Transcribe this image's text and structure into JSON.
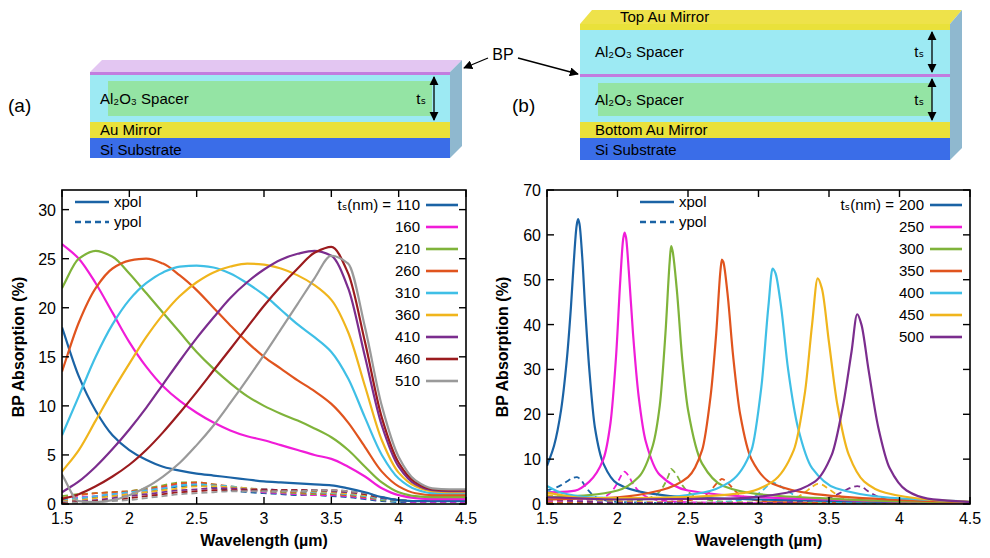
{
  "chart_data": [
    {
      "type": "line",
      "panel_label": "(a)",
      "xlabel": "Wavelength (µm)",
      "ylabel": "BP Absorption (%)",
      "xlim": [
        1.5,
        4.5
      ],
      "ylim": [
        0,
        32
      ],
      "xticks": [
        1.5,
        2,
        2.5,
        3,
        3.5,
        4,
        4.5
      ],
      "yticks": [
        0,
        5,
        10,
        15,
        20,
        25,
        30
      ],
      "legend": "upper right",
      "legend_title": "tₛ(nm) =",
      "polarization_legend": [
        {
          "name": "xpol",
          "line_style": "solid"
        },
        {
          "name": "ypol",
          "line_style": "dashed"
        }
      ],
      "schematic": {
        "bp_label": "BP",
        "spacer": "Al₂O₃ Spacer",
        "thickness": "tₛ",
        "mirror": "Au Mirror",
        "substrate": "Si Substrate"
      },
      "x": [
        1.5,
        1.625,
        1.75,
        1.875,
        2,
        2.125,
        2.25,
        2.375,
        2.5,
        2.625,
        2.75,
        2.875,
        3,
        3.125,
        3.25,
        3.375,
        3.5,
        3.625,
        3.75,
        3.875,
        4,
        4.125,
        4.25,
        4.375,
        4.5
      ],
      "series": [
        {
          "name": "110",
          "color": "#1b63a5",
          "values": [
            18,
            13,
            9.5,
            7,
            5.5,
            4.5,
            3.8,
            3.4,
            3.1,
            2.9,
            2.7,
            2.5,
            2.3,
            2.2,
            2.1,
            2.0,
            1.9,
            1.6,
            1.2,
            0.7,
            0.4,
            0.3,
            0.3,
            0.3,
            0.3
          ],
          "ypol_values": [
            0.5,
            0.6,
            0.7,
            0.8,
            1.0,
            1.2,
            1.5,
            1.8,
            1.9,
            1.7,
            1.4,
            1.2,
            1.1,
            1.0,
            0.9,
            0.9,
            0.8,
            0.7,
            0.5,
            0.3,
            0.2,
            0.2,
            0.2,
            0.2,
            0.2
          ]
        },
        {
          "name": "160",
          "color": "#f01cd8",
          "values": [
            26.5,
            25,
            22.5,
            19.5,
            16.5,
            14,
            12,
            10.5,
            9.3,
            8.3,
            7.5,
            6.9,
            6.5,
            6,
            5.5,
            5,
            4.6,
            3.8,
            2.8,
            1.6,
            0.9,
            0.6,
            0.5,
            0.5,
            0.5
          ],
          "ypol_values": [
            0.6,
            0.7,
            0.8,
            1.0,
            1.2,
            1.4,
            1.7,
            2.0,
            2.1,
            1.9,
            1.6,
            1.4,
            1.2,
            1.1,
            1.0,
            0.9,
            0.9,
            0.8,
            0.6,
            0.4,
            0.3,
            0.2,
            0.2,
            0.2,
            0.2
          ]
        },
        {
          "name": "210",
          "color": "#7fb33a",
          "values": [
            22,
            25,
            25.8,
            25.2,
            23.5,
            21.5,
            19.5,
            17.5,
            15.5,
            13.8,
            12.3,
            11,
            10,
            9.2,
            8.5,
            7.7,
            6.8,
            5.5,
            3.8,
            2.2,
            1.2,
            0.8,
            0.7,
            0.7,
            0.7
          ],
          "ypol_values": [
            0.8,
            1.0,
            1.1,
            1.2,
            1.3,
            1.6,
            1.9,
            2.2,
            2.2,
            2.0,
            1.7,
            1.5,
            1.3,
            1.2,
            1.1,
            1.0,
            1.0,
            0.9,
            0.7,
            0.4,
            0.3,
            0.3,
            0.3,
            0.3,
            0.3
          ]
        },
        {
          "name": "260",
          "color": "#e0541e",
          "values": [
            13.5,
            18.5,
            22,
            24,
            24.8,
            25,
            24.5,
            23.3,
            21.8,
            20,
            18.2,
            16.5,
            15,
            13.8,
            12.6,
            11.5,
            10.2,
            8.3,
            5.8,
            3.3,
            1.8,
            1.1,
            0.9,
            0.9,
            0.9
          ],
          "ypol_values": [
            0.6,
            0.9,
            1.1,
            1.2,
            1.3,
            1.5,
            1.8,
            2.1,
            2.2,
            2.0,
            1.8,
            1.6,
            1.4,
            1.3,
            1.2,
            1.1,
            1.0,
            0.9,
            0.7,
            0.5,
            0.3,
            0.3,
            0.3,
            0.3,
            0.3
          ]
        },
        {
          "name": "310",
          "color": "#3fbfe6",
          "values": [
            7,
            11,
            15,
            18.3,
            20.8,
            22.5,
            23.6,
            24.2,
            24.3,
            24.1,
            23.5,
            22.5,
            21.3,
            19.8,
            18.3,
            17,
            15.5,
            12.8,
            8.8,
            5,
            2.6,
            1.5,
            1.1,
            1.1,
            1.1
          ],
          "ypol_values": [
            0.4,
            0.6,
            0.8,
            1.0,
            1.2,
            1.4,
            1.6,
            1.9,
            2.0,
            1.9,
            1.8,
            1.6,
            1.5,
            1.4,
            1.3,
            1.2,
            1.1,
            1.0,
            0.8,
            0.5,
            0.3,
            0.3,
            0.3,
            0.3,
            0.3
          ]
        },
        {
          "name": "360",
          "color": "#f0b51c",
          "values": [
            3.3,
            5.5,
            8.5,
            11.5,
            14.3,
            17,
            19.3,
            21.2,
            22.6,
            23.6,
            24.2,
            24.5,
            24.4,
            24,
            23.3,
            22.3,
            20.8,
            17.5,
            12,
            6.5,
            3.2,
            1.8,
            1.3,
            1.2,
            1.2
          ],
          "ypol_values": [
            0.3,
            0.4,
            0.6,
            0.8,
            1.0,
            1.2,
            1.4,
            1.6,
            1.8,
            1.8,
            1.7,
            1.6,
            1.5,
            1.4,
            1.4,
            1.3,
            1.2,
            1.1,
            0.9,
            0.6,
            0.4,
            0.3,
            0.3,
            0.3,
            0.3
          ]
        },
        {
          "name": "410",
          "color": "#7b2d8e",
          "values": [
            1.2,
            2.3,
            3.8,
            5.6,
            7.6,
            9.8,
            12.2,
            14.6,
            16.9,
            19,
            21,
            22.6,
            23.9,
            24.9,
            25.5,
            25.8,
            25.3,
            22,
            15,
            8,
            3.8,
            2,
            1.4,
            1.3,
            1.3
          ],
          "ypol_values": [
            0.2,
            0.3,
            0.4,
            0.6,
            0.8,
            1.0,
            1.2,
            1.4,
            1.5,
            1.6,
            1.6,
            1.5,
            1.5,
            1.4,
            1.4,
            1.4,
            1.3,
            1.2,
            1.0,
            0.6,
            0.4,
            0.3,
            0.3,
            0.3,
            0.3
          ]
        },
        {
          "name": "460",
          "color": "#9b1b1e",
          "values": [
            0.5,
            1,
            1.8,
            2.8,
            4,
            5.5,
            7.3,
            9.3,
            11.4,
            13.6,
            15.8,
            18,
            20.2,
            22.2,
            24,
            25.6,
            26.2,
            23.5,
            16.5,
            8.8,
            4.2,
            2.2,
            1.5,
            1.4,
            1.4
          ],
          "ypol_values": [
            0.2,
            0.2,
            0.3,
            0.4,
            0.6,
            0.8,
            1.0,
            1.2,
            1.3,
            1.4,
            1.4,
            1.4,
            1.4,
            1.4,
            1.4,
            1.4,
            1.4,
            1.3,
            1.0,
            0.7,
            0.4,
            0.3,
            0.3,
            0.3,
            0.3
          ]
        },
        {
          "name": "510",
          "color": "#9a9a9a",
          "values": [
            3,
            0.3,
            0.2,
            0.4,
            0.9,
            1.7,
            2.8,
            4.2,
            6,
            8,
            10.3,
            12.7,
            15.2,
            17.8,
            20.4,
            23,
            25.3,
            24.5,
            18,
            10,
            4.8,
            2.4,
            1.6,
            1.5,
            1.5
          ],
          "ypol_values": [
            0.3,
            0.1,
            0.2,
            0.3,
            0.4,
            0.6,
            0.8,
            1.0,
            1.1,
            1.2,
            1.3,
            1.3,
            1.3,
            1.3,
            1.3,
            1.4,
            1.4,
            1.3,
            1.1,
            0.7,
            0.4,
            0.3,
            0.3,
            0.3,
            0.3
          ]
        }
      ]
    },
    {
      "type": "line",
      "panel_label": "(b)",
      "xlabel": "Wavelength (µm)",
      "ylabel": "BP Absorption (%)",
      "xlim": [
        1.5,
        4.5
      ],
      "ylim": [
        0,
        70
      ],
      "xticks": [
        1.5,
        2,
        2.5,
        3,
        3.5,
        4,
        4.5
      ],
      "yticks": [
        0,
        10,
        20,
        30,
        40,
        50,
        60,
        70
      ],
      "legend": "upper right",
      "legend_title": "tₛ(nm) =",
      "polarization_legend": [
        {
          "name": "xpol",
          "line_style": "solid"
        },
        {
          "name": "ypol",
          "line_style": "dashed"
        }
      ],
      "schematic": {
        "top_mirror": "Top Au Mirror",
        "spacer": "Al₂O₃ Spacer",
        "thickness": "tₛ",
        "mirror": "Bottom Au Mirror",
        "substrate": "Si Substrate"
      },
      "series": [
        {
          "name": "200",
          "color": "#1b63a5",
          "x": [
            1.5,
            1.55,
            1.6,
            1.64,
            1.67,
            1.69,
            1.71,
            1.72,
            1.73,
            1.75,
            1.77,
            1.8,
            1.84,
            1.9,
            2.0,
            2.2,
            2.5,
            3.0,
            3.5,
            4.0,
            4.5
          ],
          "values": [
            8.5,
            13,
            21,
            32,
            44,
            54,
            62,
            63.5,
            62.5,
            55,
            44,
            30,
            17,
            9,
            4.5,
            2.5,
            1.5,
            1,
            0.7,
            0.4,
            0.2
          ],
          "ypol_values": [
            3,
            3.5,
            4.2,
            5,
            5.6,
            5.9,
            6,
            5.9,
            5.7,
            5,
            4,
            2.8,
            1.6,
            0.9,
            0.5,
            0.3,
            0.2,
            0.1,
            0.1,
            0.1,
            0.1
          ]
        },
        {
          "name": "250",
          "color": "#f01cd8",
          "x": [
            1.5,
            1.7,
            1.8,
            1.9,
            1.95,
            1.99,
            2.02,
            2.04,
            2.05,
            2.06,
            2.08,
            2.11,
            2.15,
            2.2,
            2.3,
            2.5,
            3.0,
            3.5,
            4.0,
            4.5
          ],
          "values": [
            2.5,
            3,
            5,
            10,
            18,
            33,
            50,
            59,
            60.5,
            59.5,
            52,
            38,
            24,
            14,
            6.5,
            3,
            1.5,
            1,
            0.5,
            0.2
          ],
          "ypol_values": [
            0.5,
            0.5,
            0.8,
            1.5,
            2.5,
            4.2,
            6,
            7,
            7.2,
            7,
            6.2,
            4.5,
            2.9,
            1.7,
            0.8,
            0.4,
            0.2,
            0.1,
            0.1,
            0.1
          ]
        },
        {
          "name": "300",
          "color": "#7fb33a",
          "x": [
            1.5,
            1.8,
            2.0,
            2.15,
            2.25,
            2.3,
            2.34,
            2.37,
            2.38,
            2.39,
            2.42,
            2.46,
            2.5,
            2.6,
            2.75,
            3.0,
            3.5,
            4.0,
            4.5
          ],
          "values": [
            1.5,
            2,
            3,
            6,
            13,
            22,
            38,
            54,
            57.5,
            56.5,
            48,
            32,
            21,
            9,
            4,
            2.2,
            1.2,
            0.6,
            0.3
          ],
          "ypol_values": [
            0.3,
            0.3,
            0.4,
            0.8,
            1.6,
            2.8,
            4.8,
            7,
            7.8,
            7.6,
            6.4,
            4.2,
            2.7,
            1.2,
            0.5,
            0.3,
            0.2,
            0.1,
            0.1
          ]
        },
        {
          "name": "350",
          "color": "#e0541e",
          "x": [
            1.5,
            2.0,
            2.3,
            2.5,
            2.6,
            2.66,
            2.7,
            2.73,
            2.74,
            2.75,
            2.78,
            2.82,
            2.87,
            2.95,
            3.1,
            3.4,
            4.0,
            4.5
          ],
          "values": [
            1,
            1.5,
            3,
            6,
            12,
            24,
            38,
            52,
            54.5,
            54,
            47,
            33,
            20,
            10,
            4.5,
            2.2,
            0.9,
            0.4
          ],
          "ypol_values": [
            0.2,
            0.2,
            0.4,
            0.8,
            1.5,
            3,
            4.5,
            5.4,
            5.6,
            5.5,
            4.8,
            3.4,
            2,
            1,
            0.5,
            0.3,
            0.1,
            0.1
          ]
        },
        {
          "name": "400",
          "color": "#3fbfe6",
          "x": [
            1.5,
            1.6,
            1.8,
            2.2,
            2.6,
            2.8,
            2.95,
            3.02,
            3.07,
            3.1,
            3.12,
            3.16,
            3.21,
            3.28,
            3.38,
            3.55,
            3.9,
            4.5
          ],
          "values": [
            4,
            2.5,
            1.5,
            1.2,
            2.5,
            5,
            12,
            26,
            44,
            52.5,
            51.5,
            44,
            30,
            17,
            8,
            3.5,
            1.5,
            0.5
          ],
          "ypol_values": [
            3,
            2,
            1,
            0.3,
            0.3,
            0.6,
            1.4,
            2.8,
            4.2,
            4.8,
            4.6,
            3.9,
            2.8,
            1.6,
            0.8,
            0.4,
            0.2,
            0.1
          ]
        },
        {
          "name": "450",
          "color": "#f0b51c",
          "x": [
            1.5,
            1.8,
            2.4,
            2.9,
            3.1,
            3.25,
            3.33,
            3.38,
            3.42,
            3.45,
            3.5,
            3.56,
            3.64,
            3.75,
            3.9,
            4.2,
            4.5
          ],
          "values": [
            2.5,
            1.3,
            1.5,
            2.5,
            5,
            12,
            25,
            40,
            50.3,
            48,
            36,
            22,
            11,
            5,
            2.5,
            1,
            0.5
          ],
          "ypol_values": [
            2,
            1,
            0.3,
            0.3,
            0.5,
            1.2,
            2.6,
            3.8,
            4.5,
            4.3,
            3.3,
            2,
            1,
            0.5,
            0.3,
            0.1,
            0.1
          ]
        },
        {
          "name": "500",
          "color": "#7b2d8e",
          "x": [
            1.5,
            2.0,
            2.8,
            3.2,
            3.4,
            3.52,
            3.6,
            3.66,
            3.7,
            3.73,
            3.78,
            3.85,
            3.93,
            4.05,
            4.2,
            4.5
          ],
          "values": [
            1.5,
            1,
            1.2,
            2.5,
            5,
            11,
            22,
            34,
            42.3,
            40,
            30,
            17,
            8,
            3,
            1.2,
            0.4
          ],
          "ypol_values": [
            1,
            0.3,
            0.2,
            0.4,
            0.8,
            1.6,
            2.8,
            3.7,
            4,
            3.8,
            2.8,
            1.6,
            0.8,
            0.3,
            0.1,
            0.1
          ]
        }
      ]
    }
  ]
}
